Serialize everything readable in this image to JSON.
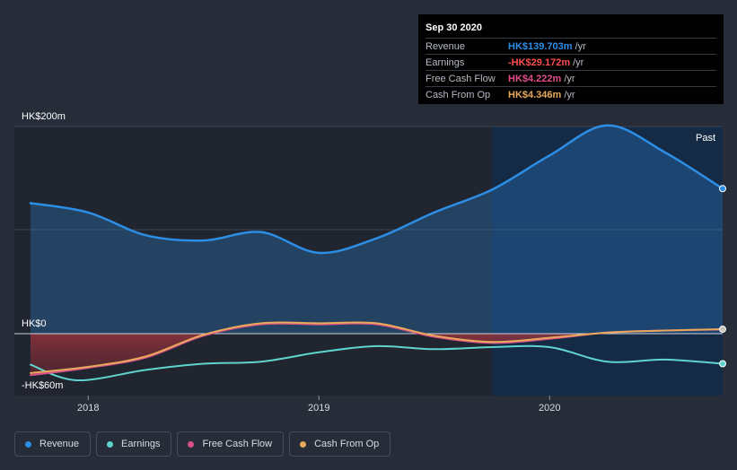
{
  "tooltip": {
    "date": "Sep 30 2020",
    "rows": [
      {
        "label": "Revenue",
        "value": "HK$139.703m",
        "unit": "/yr",
        "color": "#2d8ee6"
      },
      {
        "label": "Earnings",
        "value": "-HK$29.172m",
        "unit": "/yr",
        "color": "#ff4f4f"
      },
      {
        "label": "Free Cash Flow",
        "value": "HK$4.222m",
        "unit": "/yr",
        "color": "#e04f8a"
      },
      {
        "label": "Cash From Op",
        "value": "HK$4.346m",
        "unit": "/yr",
        "color": "#e8a95b"
      }
    ]
  },
  "legend": [
    {
      "label": "Revenue",
      "color": "#2d8ee6"
    },
    {
      "label": "Earnings",
      "color": "#5fd3ce"
    },
    {
      "label": "Free Cash Flow",
      "color": "#d9508a"
    },
    {
      "label": "Cash From Op",
      "color": "#e8a95b"
    }
  ],
  "chart_data": {
    "type": "area",
    "title": "",
    "ytick_labels": [
      "HK$200m",
      "HK$0",
      "-HK$60m"
    ],
    "ylim": [
      -60,
      200
    ],
    "xlim": [
      2017.68,
      2020.75
    ],
    "x_ticks": [
      2018,
      2019,
      2020
    ],
    "x_tick_labels": [
      "2018",
      "2019",
      "2020"
    ],
    "past_label": "Past",
    "past_start": 2019.75,
    "series": [
      {
        "name": "Revenue",
        "color": "#2d8ee6",
        "x": [
          2017.75,
          2018.0,
          2018.25,
          2018.5,
          2018.75,
          2019.0,
          2019.25,
          2019.5,
          2019.75,
          2020.0,
          2020.25,
          2020.5,
          2020.75
        ],
        "values": [
          126,
          117,
          95,
          90,
          98,
          78,
          92,
          117,
          139,
          172,
          201,
          175,
          140
        ]
      },
      {
        "name": "Earnings",
        "color": "#5fd3ce",
        "x": [
          2017.75,
          2017.95,
          2018.25,
          2018.5,
          2018.75,
          2019.0,
          2019.25,
          2019.5,
          2019.75,
          2020.0,
          2020.25,
          2020.5,
          2020.75
        ],
        "values": [
          -30,
          -45,
          -35,
          -29,
          -27,
          -18,
          -12,
          -15,
          -13,
          -13,
          -27,
          -25,
          -29
        ]
      },
      {
        "name": "Free Cash Flow",
        "color": "#d9508a",
        "x": [
          2017.75,
          2018.0,
          2018.25,
          2018.5,
          2018.75,
          2019.0,
          2019.25,
          2019.5,
          2019.75,
          2020.0,
          2020.25,
          2020.5,
          2020.75
        ],
        "values": [
          -40,
          -33,
          -23,
          -2,
          9,
          9,
          9,
          -3,
          -9,
          -5,
          1,
          3,
          4
        ]
      },
      {
        "name": "Cash From Op",
        "color": "#e8a95b",
        "x": [
          2017.75,
          2018.0,
          2018.25,
          2018.5,
          2018.75,
          2019.0,
          2019.25,
          2019.5,
          2019.75,
          2020.0,
          2020.25,
          2020.5,
          2020.75
        ],
        "values": [
          -38,
          -32,
          -22,
          -1,
          10,
          10,
          10,
          -2,
          -8,
          -4,
          1,
          3,
          4.3
        ]
      }
    ]
  }
}
